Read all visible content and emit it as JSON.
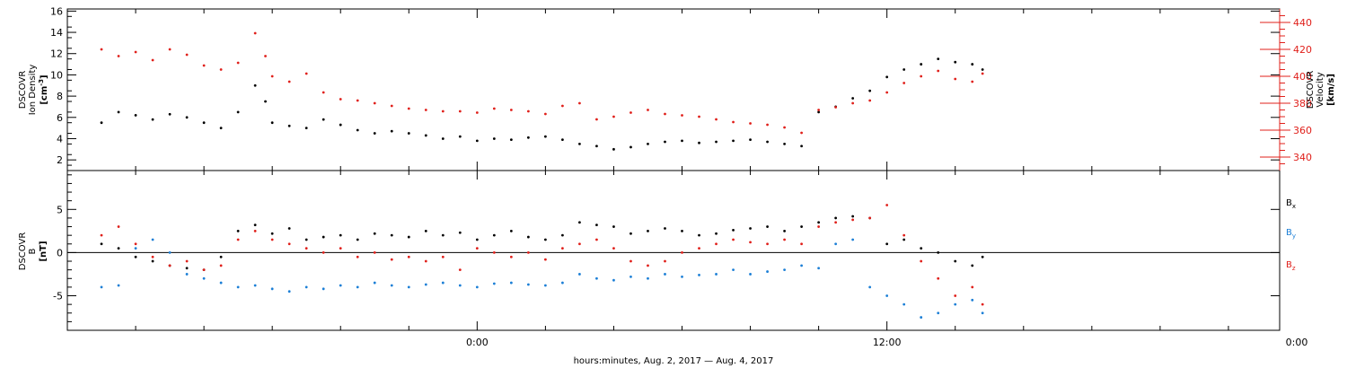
{
  "chart_data": [
    {
      "type": "scatter",
      "panel": "top",
      "ylabel_lines": [
        "DSCOVR",
        "Ion  Density"
      ],
      "yunit_pre": "[cm",
      "yunit_sup": "-3",
      "yunit_post": "]",
      "ylim": [
        1,
        16.2
      ],
      "yticks": [
        2,
        4,
        6,
        8,
        10,
        12,
        14,
        16
      ],
      "y2label_lines": [
        "DSCOVR",
        "Velocity"
      ],
      "y2unit": "[km/s]",
      "y2lim": [
        330,
        450
      ],
      "y2ticks": [
        340,
        360,
        380,
        400,
        420,
        440
      ],
      "grid": false,
      "series": [
        {
          "color": "#000000",
          "axis": "left",
          "x": [
            -11.0,
            -10.5,
            -10.0,
            -9.5,
            -9.0,
            -8.5,
            -8.0,
            -7.5,
            -7.0,
            -6.5,
            -6.2,
            -6.0,
            -5.5,
            -5.0,
            -4.5,
            -4.0,
            -3.5,
            -3.0,
            -2.5,
            -2.0,
            -1.5,
            -1.0,
            -0.5,
            0.0,
            0.5,
            1.0,
            1.5,
            2.0,
            2.5,
            3.0,
            3.5,
            4.0,
            4.5,
            5.0,
            5.5,
            6.0,
            6.5,
            7.0,
            7.5,
            8.0,
            8.5,
            9.0,
            9.5,
            10.0,
            10.5,
            11.0,
            11.5,
            12.0,
            12.5,
            13.0,
            13.5,
            14.0,
            14.5,
            14.8
          ],
          "y": [
            5.5,
            6.5,
            6.2,
            5.8,
            6.3,
            6.0,
            5.5,
            5.0,
            6.5,
            9.0,
            7.5,
            5.5,
            5.2,
            5.0,
            5.8,
            5.3,
            4.8,
            4.5,
            4.7,
            4.5,
            4.3,
            4.0,
            4.2,
            3.8,
            4.0,
            3.9,
            4.1,
            4.2,
            3.9,
            3.5,
            3.3,
            3.0,
            3.2,
            3.5,
            3.7,
            3.8,
            3.6,
            3.7,
            3.8,
            3.9,
            3.7,
            3.5,
            3.3,
            6.5,
            7.0,
            7.8,
            8.5,
            9.8,
            10.5,
            11.0,
            11.5,
            11.2,
            11.0,
            10.5
          ]
        },
        {
          "color": "#e0201b",
          "axis": "right",
          "x": [
            -11.0,
            -10.5,
            -10.0,
            -9.5,
            -9.0,
            -8.5,
            -8.0,
            -7.5,
            -7.0,
            -6.5,
            -6.2,
            -6.0,
            -5.5,
            -5.0,
            -4.5,
            -4.0,
            -3.5,
            -3.0,
            -2.5,
            -2.0,
            -1.5,
            -1.0,
            -0.5,
            0.0,
            0.5,
            1.0,
            1.5,
            2.0,
            2.5,
            3.0,
            3.5,
            4.0,
            4.5,
            5.0,
            5.5,
            6.0,
            6.5,
            7.0,
            7.5,
            8.0,
            8.5,
            9.0,
            9.5,
            10.0,
            10.5,
            11.0,
            11.5,
            12.0,
            12.5,
            13.0,
            13.5,
            14.0,
            14.5,
            14.8
          ],
          "y": [
            420,
            415,
            418,
            412,
            420,
            416,
            408,
            405,
            410,
            432,
            415,
            400,
            396,
            402,
            388,
            383,
            382,
            380,
            378,
            376,
            375,
            374,
            374,
            373,
            376,
            375,
            374,
            372,
            378,
            380,
            368,
            370,
            373,
            375,
            372,
            371,
            370,
            368,
            366,
            365,
            364,
            362,
            358,
            375,
            377,
            380,
            382,
            388,
            395,
            400,
            404,
            398,
            396,
            402
          ]
        }
      ]
    },
    {
      "type": "scatter",
      "panel": "bottom",
      "ylabel_lines": [
        "DSCOVR",
        "B"
      ],
      "yunit": "[nT]",
      "ylim": [
        -9,
        9.5
      ],
      "yticks": [
        -5,
        0,
        5
      ],
      "zero_line": true,
      "legend_position": "right",
      "series": [
        {
          "name": "B",
          "sub": "x",
          "color": "#000000",
          "x": [
            -11.0,
            -10.5,
            -10.0,
            -9.5,
            -9.0,
            -8.5,
            -8.0,
            -7.5,
            -7.0,
            -6.5,
            -6.0,
            -5.5,
            -5.0,
            -4.5,
            -4.0,
            -3.5,
            -3.0,
            -2.5,
            -2.0,
            -1.5,
            -1.0,
            -0.5,
            0.0,
            0.5,
            1.0,
            1.5,
            2.0,
            2.5,
            3.0,
            3.5,
            4.0,
            4.5,
            5.0,
            5.5,
            6.0,
            6.5,
            7.0,
            7.5,
            8.0,
            8.5,
            9.0,
            9.5,
            10.0,
            10.5,
            11.0,
            11.5,
            12.0,
            12.5,
            13.0,
            13.5,
            14.0,
            14.5,
            14.8
          ],
          "y": [
            1.0,
            0.5,
            -0.5,
            -1.0,
            -1.5,
            -1.8,
            -2.0,
            -0.5,
            2.5,
            3.2,
            2.2,
            2.8,
            1.5,
            1.8,
            2.0,
            1.5,
            2.2,
            2.0,
            1.8,
            2.5,
            2.0,
            2.3,
            1.5,
            2.0,
            2.5,
            1.8,
            1.5,
            2.0,
            3.5,
            3.2,
            3.0,
            2.2,
            2.5,
            2.8,
            2.5,
            2.0,
            2.2,
            2.6,
            2.8,
            3.0,
            2.5,
            3.0,
            3.5,
            4.0,
            4.2,
            4.0,
            1.0,
            1.5,
            0.5,
            0.0,
            -1.0,
            -1.5,
            -0.5
          ]
        },
        {
          "name": "B",
          "sub": "y",
          "color": "#1c7fd6",
          "x": [
            -11.0,
            -10.5,
            -10.0,
            -9.5,
            -9.0,
            -8.5,
            -8.0,
            -7.5,
            -7.0,
            -6.5,
            -6.0,
            -5.5,
            -5.0,
            -4.5,
            -4.0,
            -3.5,
            -3.0,
            -2.5,
            -2.0,
            -1.5,
            -1.0,
            -0.5,
            0.0,
            0.5,
            1.0,
            1.5,
            2.0,
            2.5,
            3.0,
            3.5,
            4.0,
            4.5,
            5.0,
            5.5,
            6.0,
            6.5,
            7.0,
            7.5,
            8.0,
            8.5,
            9.0,
            9.5,
            10.0,
            10.5,
            11.0,
            11.5,
            12.0,
            12.5,
            13.0,
            13.5,
            14.0,
            14.5,
            14.8
          ],
          "y": [
            -4.0,
            -3.8,
            0.5,
            1.5,
            0.0,
            -2.5,
            -3.0,
            -3.5,
            -4.0,
            -3.8,
            -4.2,
            -4.5,
            -4.0,
            -4.2,
            -3.8,
            -4.0,
            -3.5,
            -3.8,
            -4.0,
            -3.7,
            -3.5,
            -3.8,
            -4.0,
            -3.6,
            -3.5,
            -3.7,
            -3.8,
            -3.5,
            -2.5,
            -3.0,
            -3.2,
            -2.8,
            -3.0,
            -2.5,
            -2.8,
            -2.6,
            -2.5,
            -2.0,
            -2.5,
            -2.2,
            -2.0,
            -1.5,
            -1.8,
            1.0,
            1.5,
            -4.0,
            -5.0,
            -6.0,
            -7.5,
            -7.0,
            -6.0,
            -5.5,
            -7.0
          ]
        },
        {
          "name": "B",
          "sub": "z",
          "color": "#e0201b",
          "x": [
            -11.0,
            -10.5,
            -10.0,
            -9.5,
            -9.0,
            -8.5,
            -8.0,
            -7.5,
            -7.0,
            -6.5,
            -6.0,
            -5.5,
            -5.0,
            -4.5,
            -4.0,
            -3.5,
            -3.0,
            -2.5,
            -2.0,
            -1.5,
            -1.0,
            -0.5,
            0.0,
            0.5,
            1.0,
            1.5,
            2.0,
            2.5,
            3.0,
            3.5,
            4.0,
            4.5,
            5.0,
            5.5,
            6.0,
            6.5,
            7.0,
            7.5,
            8.0,
            8.5,
            9.0,
            9.5,
            10.0,
            10.5,
            11.0,
            11.5,
            12.0,
            12.5,
            13.0,
            13.5,
            14.0,
            14.5,
            14.8
          ],
          "y": [
            2.0,
            3.0,
            1.0,
            -0.5,
            -1.5,
            -1.0,
            -2.0,
            -1.5,
            1.5,
            2.5,
            1.5,
            1.0,
            0.5,
            0.0,
            0.5,
            -0.5,
            0.0,
            -0.8,
            -0.5,
            -1.0,
            -0.5,
            -2.0,
            0.5,
            0.0,
            -0.5,
            0.0,
            -0.8,
            0.5,
            1.0,
            1.5,
            0.5,
            -1.0,
            -1.5,
            -1.0,
            0.0,
            0.5,
            1.0,
            1.5,
            1.2,
            1.0,
            1.5,
            1.0,
            3.0,
            3.5,
            3.8,
            4.0,
            5.5,
            2.0,
            -1.0,
            -3.0,
            -5.0,
            -4.0,
            -6.0
          ]
        }
      ]
    }
  ],
  "xaxis": {
    "label": "hours:minutes,  Aug.  2, 2017  —  Aug.  4, 2017",
    "xlim": [
      -12.0,
      23.5
    ],
    "major_ticks": [
      0,
      12,
      24
    ],
    "tick_labels": [
      "0:00",
      "12:00",
      "0:00"
    ],
    "minor_tick_step": 2
  }
}
